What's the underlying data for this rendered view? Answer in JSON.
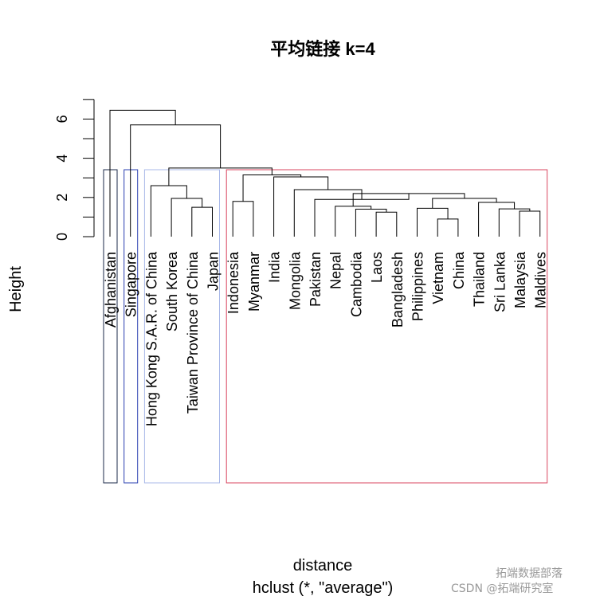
{
  "chart_data": {
    "type": "dendrogram",
    "title": "平均链接 k=4",
    "xlabel": "distance",
    "sub_label": "hclust (*, \"average\")",
    "ylabel": "Height",
    "ylim": [
      0,
      7
    ],
    "yticks": [
      0,
      2,
      4,
      6
    ],
    "leaves": [
      "Afghanistan",
      "Singapore",
      "Hong Kong S.A.R. of China",
      "South Korea",
      "Taiwan Province of China",
      "Japan",
      "Indonesia",
      "Myanmar",
      "India",
      "Mongolia",
      "Pakistan",
      "Nepal",
      "Cambodia",
      "Laos",
      "Bangladesh",
      "Philippines",
      "Vietnam",
      "China",
      "Thailand",
      "Sri Lanka",
      "Malaysia",
      "Maldives"
    ],
    "merges": [
      {
        "id": "laos_bangladesh",
        "children": [
          "Laos",
          "Bangladesh"
        ],
        "height": 1.25
      },
      {
        "id": "cambodia_group",
        "children": [
          "Cambodia",
          "laos_bangladesh"
        ],
        "height": 1.4
      },
      {
        "id": "nepal_group",
        "children": [
          "Nepal",
          "cambodia_group"
        ],
        "height": 1.55
      },
      {
        "id": "vietnam_china",
        "children": [
          "Vietnam",
          "China"
        ],
        "height": 0.9
      },
      {
        "id": "philippines_group",
        "children": [
          "Philippines",
          "vietnam_china"
        ],
        "height": 1.45
      },
      {
        "id": "malaysia_maldives",
        "children": [
          "Malaysia",
          "Maldives"
        ],
        "height": 1.3
      },
      {
        "id": "srilanka_group",
        "children": [
          "Sri Lanka",
          "malaysia_maldives"
        ],
        "height": 1.42
      },
      {
        "id": "thailand_group",
        "children": [
          "Thailand",
          "srilanka_group"
        ],
        "height": 1.75
      },
      {
        "id": "sea_group",
        "children": [
          "philippines_group",
          "thailand_group"
        ],
        "height": 1.95
      },
      {
        "id": "south_asia_group",
        "children": [
          "nepal_group",
          "sea_group"
        ],
        "height": 2.2
      },
      {
        "id": "pakistan_group",
        "children": [
          "Pakistan",
          "south_asia_group"
        ],
        "height": 1.9
      },
      {
        "id": "mongolia_group",
        "children": [
          "Mongolia",
          "pakistan_group"
        ],
        "height": 2.4
      },
      {
        "id": "india_group",
        "children": [
          "India",
          "mongolia_group"
        ],
        "height": 3.05
      },
      {
        "id": "indonesia_myanmar",
        "children": [
          "Indonesia",
          "Myanmar"
        ],
        "height": 1.8
      },
      {
        "id": "asia_main",
        "children": [
          "indonesia_myanmar",
          "india_group"
        ],
        "height": 3.15
      },
      {
        "id": "taiwan_japan",
        "children": [
          "Taiwan Province of China",
          "Japan"
        ],
        "height": 1.5
      },
      {
        "id": "korea_group",
        "children": [
          "South Korea",
          "taiwan_japan"
        ],
        "height": 1.95
      },
      {
        "id": "east_asia",
        "children": [
          "Hong Kong S.A.R. of China",
          "korea_group"
        ],
        "height": 2.6
      },
      {
        "id": "asia_all",
        "children": [
          "east_asia",
          "asia_main"
        ],
        "height": 3.5
      },
      {
        "id": "with_singapore",
        "children": [
          "Singapore",
          "asia_all"
        ],
        "height": 5.7
      },
      {
        "id": "root",
        "children": [
          "Afghanistan",
          "with_singapore"
        ],
        "height": 6.45
      }
    ],
    "clusters": [
      {
        "from": "Afghanistan",
        "to": "Afghanistan",
        "color": "#1b2a4a"
      },
      {
        "from": "Singapore",
        "to": "Singapore",
        "color": "#2a3fb0"
      },
      {
        "from": "Hong Kong S.A.R. of China",
        "to": "Japan",
        "color": "#a9b8e8"
      },
      {
        "from": "Indonesia",
        "to": "Maldives",
        "color": "#d9455f"
      }
    ]
  },
  "watermark": {
    "line1": "拓端数据部落",
    "line2": "CSDN @拓端研究室"
  }
}
